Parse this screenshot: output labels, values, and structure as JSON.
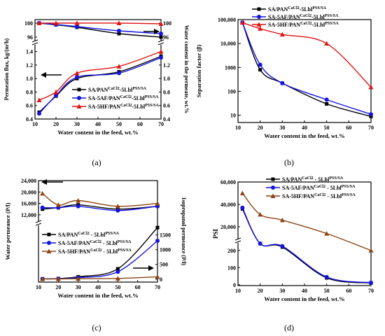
{
  "chart_data": [
    {
      "id": "a",
      "panel_label": "(a)",
      "type": "line",
      "xlabel": "Water content in the feed, wt.%",
      "ylabel": "Permeation flux, kg/(m²h)",
      "y2label": "Water content in the permeate, wt.%",
      "x_ticks": [
        "10",
        "20",
        "30",
        "40",
        "50",
        "60",
        "70"
      ],
      "y_ticks": [
        "0.4",
        "0.6",
        "0.8",
        "1.0",
        "1.2",
        "1.4"
      ],
      "y_top_ticks": [
        "96",
        "100"
      ],
      "y2_ticks": [
        "0.4",
        "0.6",
        "0.8",
        "1.0",
        "1.2"
      ],
      "y2_top_ticks": [
        "96",
        "100"
      ],
      "xlim": [
        10,
        70
      ],
      "ylim": [
        0.4,
        1.5
      ],
      "top_lim": [
        95,
        101
      ],
      "legend": [
        {
          "text": "SA/PAN",
          "sup": "CaCl2",
          "mid": "-5Lbl",
          "sup2": "PSS/SA"
        },
        {
          "text": "SA-5AF/PAN",
          "sup": "CaCl2",
          "mid": "-5Lbl",
          "sup2": "PSS/SA"
        },
        {
          "text": "SA-5HF/PAN",
          "sup": "CaCl2",
          "mid": "-5Lbl",
          "sup2": "PSS/SA"
        }
      ],
      "series": [
        {
          "name": "SA/PAN-5Lbl",
          "color": "#000000",
          "marker": "square",
          "x": [
            12,
            20,
            30,
            50,
            70
          ],
          "flux": [
            0.5,
            0.74,
            1.0,
            1.1,
            1.33
          ],
          "water": [
            100,
            99.5,
            98.8,
            97.0,
            96.0
          ]
        },
        {
          "name": "SA-5AF/PAN-5Lbl",
          "color": "#1414e0",
          "marker": "circle",
          "x": [
            12,
            20,
            30,
            50,
            70
          ],
          "flux": [
            0.48,
            0.75,
            1.02,
            1.08,
            1.31
          ],
          "water": [
            100,
            99.6,
            99.0,
            97.8,
            97.0
          ]
        },
        {
          "name": "SA-5HF/PAN-5Lbl",
          "color": "#e01414",
          "marker": "triangle",
          "x": [
            12,
            20,
            30,
            50,
            70
          ],
          "flux": [
            0.68,
            0.8,
            1.08,
            1.18,
            1.4
          ],
          "water": [
            100,
            100,
            100,
            100,
            99.8
          ]
        }
      ]
    },
    {
      "id": "b",
      "panel_label": "(b)",
      "type": "line",
      "xlabel": "Water content in the feed, wt.%",
      "ylabel": "Separation factor (β)",
      "x_ticks": [
        "10",
        "20",
        "30",
        "40",
        "50",
        "60",
        "70"
      ],
      "y_ticks": [
        "10",
        "100",
        "1000",
        "10,000",
        "100,000"
      ],
      "xlim": [
        10,
        70
      ],
      "ylim": [
        5,
        100000
      ],
      "log_y": true,
      "legend": [
        {
          "text": "SA/PAN",
          "sup": "CaCl2",
          "mid": "-5Lbl",
          "sup2": "PSS/SA"
        },
        {
          "text": "SA-5AF/PAN",
          "sup": "CaCl2",
          "mid": "-5Lbl",
          "sup2": "PSS/SA"
        },
        {
          "text": "SA-5HF/PAN",
          "sup": "CaCl2",
          "mid": "-5Lbl",
          "sup2": "PSS/SA"
        }
      ],
      "series": [
        {
          "name": "SA/PAN-5Lbl",
          "color": "#000000",
          "marker": "square",
          "x": [
            12,
            20,
            30,
            50,
            70
          ],
          "y": [
            75000,
            800,
            220,
            30,
            9
          ]
        },
        {
          "name": "SA-5AF/PAN-5Lbl",
          "color": "#1414e0",
          "marker": "circle",
          "x": [
            12,
            20,
            30,
            50,
            70
          ],
          "y": [
            75000,
            1300,
            220,
            45,
            11
          ]
        },
        {
          "name": "SA-5HF/PAN-5Lbl",
          "color": "#e01414",
          "marker": "triangle",
          "x": [
            12,
            20,
            30,
            50,
            70
          ],
          "y": [
            75000,
            42000,
            24000,
            10000,
            150
          ]
        }
      ]
    },
    {
      "id": "c",
      "panel_label": "(c)",
      "type": "line",
      "xlabel": "Water content in the feed, wt.%",
      "ylabel": "Water permeance (P/l)",
      "y2label": "Isopropanol permeance (P/l)",
      "x_ticks": [
        "10",
        "20",
        "30",
        "40",
        "50",
        "60",
        "70"
      ],
      "y_top_ticks": [
        "12,000",
        "16,000",
        "20,000",
        "24,000"
      ],
      "y2_ticks": [
        "0",
        "500",
        "1000",
        "1500"
      ],
      "xlim": [
        10,
        70
      ],
      "top_lim": [
        10000,
        24000
      ],
      "bottom_lim": [
        -100,
        1800
      ],
      "legend": [
        {
          "text": "SA/PAN",
          "sup": "CaCl2",
          "mid": " - 5Lbl",
          "sup2": "PSS/SA"
        },
        {
          "text": "SA-5AF/PAN",
          "sup": "CaCl2",
          "mid": " - 5Lbl",
          "sup2": "PSS/SA"
        },
        {
          "text": "SA-5HF/PAN",
          "sup": "CaCl2",
          "mid": " - 5Lbl",
          "sup2": "PSS/SA"
        }
      ],
      "series": [
        {
          "name": "SA/PAN-5Lbl",
          "color": "#000000",
          "marker": "square",
          "x": [
            12,
            20,
            30,
            50,
            70
          ],
          "water": [
            14000,
            14500,
            15500,
            14000,
            15000
          ],
          "iso": [
            10,
            20,
            80,
            350,
            1750
          ]
        },
        {
          "name": "SA-5AF/PAN-5Lbl",
          "color": "#1414e0",
          "marker": "circle",
          "x": [
            12,
            20,
            30,
            50,
            70
          ],
          "water": [
            14500,
            14500,
            15000,
            13500,
            15000
          ],
          "iso": [
            8,
            15,
            50,
            250,
            1300
          ]
        },
        {
          "name": "SA-5HF/PAN-5Lbl",
          "color": "#8b4513",
          "marker": "triangle",
          "x": [
            12,
            20,
            30,
            50,
            70
          ],
          "water": [
            19500,
            15500,
            17000,
            15000,
            16000
          ],
          "iso": [
            5,
            8,
            15,
            25,
            80
          ]
        }
      ]
    },
    {
      "id": "d",
      "panel_label": "(d)",
      "type": "line",
      "xlabel": "Water content in the feed, wt.%",
      "ylabel": "PSI",
      "x_ticks": [
        "10",
        "20",
        "30",
        "40",
        "50",
        "60",
        "70"
      ],
      "y_top_ticks": [
        "20,000",
        "40,000",
        "60,000"
      ],
      "y_bottom_ticks": [
        "0",
        "100",
        "200"
      ],
      "xlim": [
        10,
        70
      ],
      "top_lim": [
        10000,
        60000
      ],
      "bottom_lim": [
        -5,
        240
      ],
      "legend": [
        {
          "text": "SA/PAN",
          "sup": "CaCl2",
          "mid": " - 5Lbl",
          "sup2": "PSS/SA"
        },
        {
          "text": "SA-5AF/PAN",
          "sup": "CaCl2",
          "mid": " - 5Lbl",
          "sup2": "PSS/SA"
        },
        {
          "text": "SA-5HF/PAN",
          "sup": "CaCl2",
          "mid": " - 5Lbl",
          "sup2": "PSS/SA"
        }
      ],
      "series": [
        {
          "name": "SA/PAN-5Lbl",
          "color": "#000000",
          "marker": "square",
          "x": [
            12,
            20,
            30,
            50,
            70
          ],
          "y": [
            36000,
            "b:240",
            "b:220",
            "b:40",
            "b:10"
          ]
        },
        {
          "name": "SA-5AF/PAN-5Lbl",
          "color": "#1414e0",
          "marker": "circle",
          "x": [
            12,
            20,
            30,
            50,
            70
          ],
          "y": [
            37000,
            "b:240",
            "b:225",
            "b:45",
            "b:12"
          ]
        },
        {
          "name": "SA-5HF/PAN-5Lbl",
          "color": "#8b4513",
          "marker": "triangle",
          "x": [
            12,
            20,
            30,
            50,
            70
          ],
          "y": [
            50000,
            31000,
            26000,
            14000,
            "b:200"
          ]
        }
      ]
    }
  ]
}
